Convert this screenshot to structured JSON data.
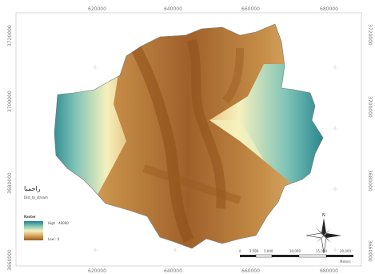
{
  "map": {
    "top_ticks": [
      "620000",
      "640000",
      "660000",
      "680000"
    ],
    "bottom_ticks": [
      "620000",
      "640000",
      "660000",
      "680000"
    ],
    "left_ticks": [
      "3720000",
      "3700000",
      "3680000",
      "3660000"
    ],
    "right_ticks": [
      "3720000",
      "3700000",
      "3680000",
      "3660000"
    ],
    "title": "راحمبا",
    "subtitle": "Dist_to_stream",
    "legend": {
      "heading": "Raster",
      "high_label": "High : 40000",
      "low_label": "Low : 0",
      "colors": {
        "low": "#9b5a1d",
        "mid_low": "#d9a860",
        "mid": "#f5f1bd",
        "mid_high": "#7fc4b7",
        "high": "#1e7f8a"
      }
    },
    "scale_bar": {
      "labels": [
        "0",
        "2,500",
        "5,000",
        "10,000",
        "15,000",
        "20,000"
      ],
      "unit": "Meters"
    },
    "north_arrow": {
      "label": "N"
    }
  }
}
